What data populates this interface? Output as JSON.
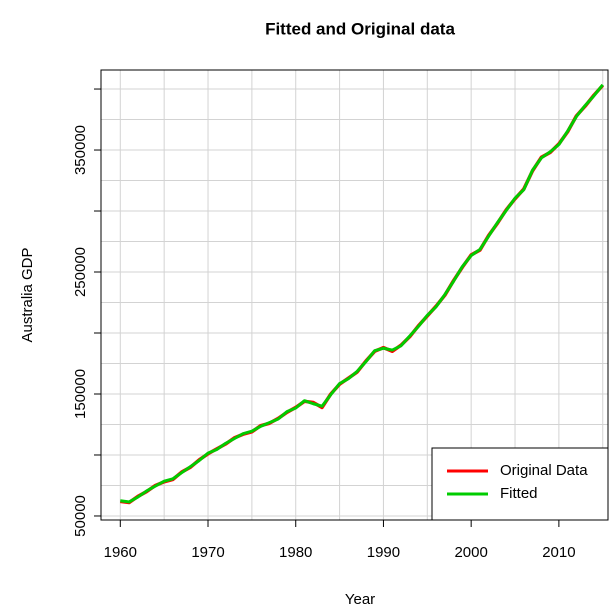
{
  "chart_data": {
    "type": "line",
    "title": "Fitted and Original data",
    "xlabel": "Year",
    "ylabel": "Australia GDP",
    "x": [
      1960,
      1961,
      1962,
      1963,
      1964,
      1965,
      1966,
      1967,
      1968,
      1969,
      1970,
      1971,
      1972,
      1973,
      1974,
      1975,
      1976,
      1977,
      1978,
      1979,
      1980,
      1981,
      1982,
      1983,
      1984,
      1985,
      1986,
      1987,
      1988,
      1989,
      1990,
      1991,
      1992,
      1993,
      1994,
      1995,
      1996,
      1997,
      1998,
      1999,
      2000,
      2001,
      2002,
      2003,
      2004,
      2005,
      2006,
      2007,
      2008,
      2009,
      2010,
      2011,
      2012,
      2013,
      2014,
      2015
    ],
    "series": [
      {
        "name": "Original Data",
        "color": "#ff0000",
        "values": [
          62000,
          61000,
          66000,
          70000,
          75000,
          78000,
          80000,
          86000,
          90000,
          96000,
          101000,
          105000,
          109000,
          114000,
          117000,
          119000,
          124000,
          126000,
          130000,
          135000,
          139000,
          144000,
          143000,
          139000,
          150000,
          158000,
          163000,
          168000,
          177000,
          185000,
          188000,
          185000,
          190000,
          197000,
          206000,
          214000,
          222000,
          231000,
          243000,
          254000,
          264000,
          268000,
          280000,
          290000,
          301000,
          310000,
          318000,
          333000,
          344000,
          348000,
          355000,
          365000,
          378000,
          386000,
          395000,
          403000
        ]
      },
      {
        "name": "Fitted",
        "color": "#00cc00",
        "values": [
          62500,
          61500,
          65500,
          70500,
          74500,
          78500,
          80500,
          85500,
          90500,
          95500,
          101500,
          104500,
          109500,
          113500,
          117500,
          119500,
          123500,
          126500,
          129500,
          135500,
          138500,
          144500,
          142000,
          140000,
          149500,
          158500,
          162500,
          168500,
          176500,
          185500,
          187500,
          186000,
          189500,
          197500,
          205500,
          214500,
          221500,
          231500,
          242500,
          254500,
          263500,
          268500,
          279500,
          290500,
          300500,
          310500,
          317500,
          333500,
          343500,
          348500,
          354500,
          365500,
          377500,
          386500,
          394500,
          403500
        ]
      }
    ],
    "xlim": [
      1957.8,
      2015.6
    ],
    "xticks": [
      1960,
      1970,
      1980,
      1990,
      2000,
      2010
    ],
    "xgrid": [
      1965,
      1975,
      1985,
      1995,
      2005,
      2015
    ],
    "ylim": [
      46700,
      415600
    ],
    "yticks": [
      50000,
      150000,
      250000,
      350000
    ],
    "yminor": [
      100000,
      200000,
      300000,
      400000
    ],
    "ygrid": [
      75000,
      125000,
      175000,
      225000,
      275000,
      325000,
      375000
    ],
    "grid": true,
    "legend": "bottom-right"
  }
}
